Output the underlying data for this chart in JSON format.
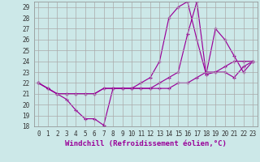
{
  "xlabel": "Windchill (Refroidissement éolien,°C)",
  "bg_color": "#cce8e8",
  "grid_color": "#aaaaaa",
  "line_color": "#990099",
  "xlim": [
    -0.5,
    23.5
  ],
  "ylim": [
    18,
    29.5
  ],
  "xticks": [
    0,
    1,
    2,
    3,
    4,
    5,
    6,
    7,
    8,
    9,
    10,
    11,
    12,
    13,
    14,
    15,
    16,
    17,
    18,
    19,
    20,
    21,
    22,
    23
  ],
  "yticks": [
    18,
    19,
    20,
    21,
    22,
    23,
    24,
    25,
    26,
    27,
    28,
    29
  ],
  "series1": {
    "x": [
      0,
      1,
      2,
      3,
      4,
      5,
      6,
      7,
      8,
      9,
      10,
      11,
      12,
      13,
      14,
      15,
      16,
      17,
      18,
      19,
      20,
      21,
      22,
      23
    ],
    "y": [
      22.0,
      21.5,
      21.0,
      20.5,
      19.5,
      18.7,
      18.7,
      18.1,
      21.5,
      21.5,
      21.5,
      22.0,
      22.5,
      24.0,
      28.0,
      29.0,
      29.5,
      26.0,
      22.8,
      23.0,
      23.0,
      22.5,
      23.5,
      24.0
    ]
  },
  "series2": {
    "x": [
      0,
      1,
      2,
      3,
      4,
      5,
      6,
      7,
      8,
      9,
      10,
      11,
      12,
      13,
      14,
      15,
      16,
      17,
      18,
      19,
      20,
      21,
      22,
      23
    ],
    "y": [
      22.0,
      21.5,
      21.0,
      21.0,
      21.0,
      21.0,
      21.0,
      21.5,
      21.5,
      21.5,
      21.5,
      21.5,
      21.5,
      21.5,
      21.5,
      22.0,
      22.0,
      22.5,
      23.0,
      23.0,
      23.5,
      24.0,
      24.0,
      24.0
    ]
  },
  "series3": {
    "x": [
      0,
      1,
      2,
      3,
      4,
      5,
      6,
      7,
      8,
      9,
      10,
      11,
      12,
      13,
      14,
      15,
      16,
      17,
      18,
      19,
      20,
      21,
      22,
      23
    ],
    "y": [
      22.0,
      21.5,
      21.0,
      21.0,
      21.0,
      21.0,
      21.0,
      21.5,
      21.5,
      21.5,
      21.5,
      21.5,
      21.5,
      22.0,
      22.5,
      23.0,
      26.5,
      29.5,
      22.8,
      27.0,
      26.0,
      24.5,
      23.0,
      24.0
    ]
  },
  "tick_fontsize": 5.5,
  "xlabel_fontsize": 6.5
}
